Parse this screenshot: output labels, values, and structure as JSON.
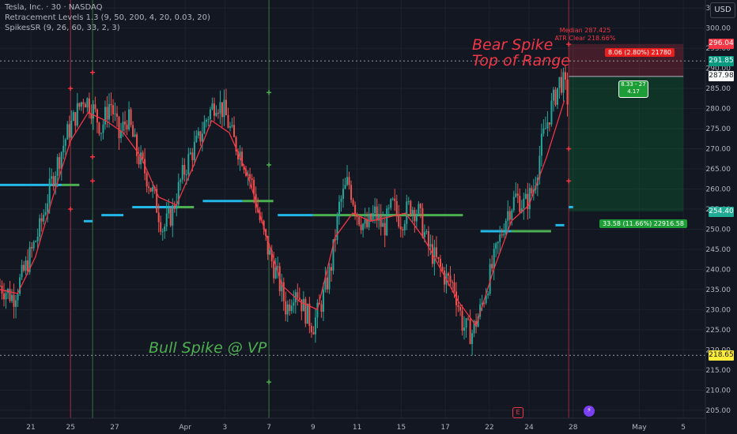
{
  "header": {
    "title": "Tesla, Inc. · 30 · NASDAQ",
    "indicator1": "Retracement Levels 1.3 (9, 50, 200, 4, 20, 0.03, 20)",
    "indicator2": "SpikesSR (9, 26, 60, 33, 2, 3)",
    "currency_button": "USD"
  },
  "annotations": {
    "bear_spike_line1": "Bear Spike",
    "bear_spike_line2": "Top of Range",
    "bull_spike": "Bull Spike @ VP",
    "median_label": "Median 287.425",
    "atr_label": "ATR Clear 218.66%",
    "stop_tag": "8.06 (2.80%) 21780",
    "target_tag": "33.58 (11.66%) 22916.58",
    "position_line1": "8.33 - 27",
    "position_line2": "4.17"
  },
  "price_tags": [
    {
      "text": "296.04",
      "value": 296.04,
      "bg": "#f23645",
      "fg": "#ffffff"
    },
    {
      "text": "291.85",
      "value": 291.85,
      "bg": "#089981",
      "fg": "#ffffff"
    },
    {
      "text": "287.98",
      "value": 287.98,
      "bg": "#ffffff",
      "fg": "#131722"
    },
    {
      "text": "254.40",
      "value": 254.4,
      "bg": "#22ab94",
      "fg": "#ffffff"
    },
    {
      "text": "218.65",
      "value": 218.65,
      "bg": "#ffeb3b",
      "fg": "#131722"
    }
  ],
  "events": {
    "earnings": "E",
    "ai": "⚡"
  },
  "colors": {
    "background": "#131722",
    "grid": "#1e222d",
    "up_candle": "#26a69a",
    "down_candle": "#ef5350",
    "ma_line": "#f23645",
    "vp_cyan": "#22b7e6",
    "vp_green": "#4caf50",
    "bear": "#f23645",
    "bull": "#4caf50"
  },
  "chart_data": {
    "type": "candlestick",
    "symbol": "Tesla, Inc. · 30 · NASDAQ",
    "ylim": [
      203,
      307
    ],
    "ticks_y": [
      205,
      210,
      215,
      220,
      225,
      230,
      235,
      240,
      245,
      250,
      255,
      260,
      265,
      270,
      275,
      280,
      285,
      290,
      295,
      300,
      305
    ],
    "x_labels": [
      "21",
      "25",
      "27",
      "Apr",
      "3",
      "7",
      "9",
      "11",
      "15",
      "17",
      "22",
      "24",
      "28",
      "May",
      "5"
    ],
    "price_path": [
      {
        "t": 0,
        "p": 236
      },
      {
        "t": 3,
        "p": 233
      },
      {
        "t": 6,
        "p": 241
      },
      {
        "t": 9,
        "p": 250
      },
      {
        "t": 12,
        "p": 263
      },
      {
        "t": 15,
        "p": 273
      },
      {
        "t": 17,
        "p": 278
      },
      {
        "t": 19,
        "p": 283
      },
      {
        "t": 21,
        "p": 280
      },
      {
        "t": 23,
        "p": 275
      },
      {
        "t": 25,
        "p": 282
      },
      {
        "t": 27,
        "p": 273
      },
      {
        "t": 29,
        "p": 278
      },
      {
        "t": 31,
        "p": 269
      },
      {
        "t": 33,
        "p": 264
      },
      {
        "t": 35,
        "p": 258
      },
      {
        "t": 37,
        "p": 250
      },
      {
        "t": 39,
        "p": 254
      },
      {
        "t": 41,
        "p": 262
      },
      {
        "t": 43,
        "p": 268
      },
      {
        "t": 45,
        "p": 272
      },
      {
        "t": 47,
        "p": 278
      },
      {
        "t": 49,
        "p": 282
      },
      {
        "t": 51,
        "p": 279
      },
      {
        "t": 53,
        "p": 272
      },
      {
        "t": 55,
        "p": 268
      },
      {
        "t": 57,
        "p": 262
      },
      {
        "t": 59,
        "p": 252
      },
      {
        "t": 61,
        "p": 244
      },
      {
        "t": 63,
        "p": 238
      },
      {
        "t": 65,
        "p": 230
      },
      {
        "t": 67,
        "p": 236
      },
      {
        "t": 69,
        "p": 230
      },
      {
        "t": 71,
        "p": 226
      },
      {
        "t": 73,
        "p": 232
      },
      {
        "t": 75,
        "p": 240
      },
      {
        "t": 77,
        "p": 256
      },
      {
        "t": 79,
        "p": 262
      },
      {
        "t": 81,
        "p": 254
      },
      {
        "t": 83,
        "p": 250
      },
      {
        "t": 85,
        "p": 254
      },
      {
        "t": 87,
        "p": 250
      },
      {
        "t": 89,
        "p": 256
      },
      {
        "t": 91,
        "p": 252
      },
      {
        "t": 93,
        "p": 256
      },
      {
        "t": 95,
        "p": 254
      },
      {
        "t": 97,
        "p": 246
      },
      {
        "t": 99,
        "p": 242
      },
      {
        "t": 101,
        "p": 238
      },
      {
        "t": 103,
        "p": 236
      },
      {
        "t": 105,
        "p": 226
      },
      {
        "t": 107,
        "p": 224
      },
      {
        "t": 109,
        "p": 230
      },
      {
        "t": 111,
        "p": 238
      },
      {
        "t": 113,
        "p": 246
      },
      {
        "t": 115,
        "p": 254
      },
      {
        "t": 117,
        "p": 258
      },
      {
        "t": 119,
        "p": 256
      },
      {
        "t": 121,
        "p": 260
      },
      {
        "t": 123,
        "p": 272
      },
      {
        "t": 125,
        "p": 280
      },
      {
        "t": 127,
        "p": 287
      },
      {
        "t": 128,
        "p": 286
      },
      {
        "t": 129,
        "p": 281
      }
    ],
    "ma_path": [
      {
        "t": 0,
        "p": 235
      },
      {
        "t": 4,
        "p": 234
      },
      {
        "t": 8,
        "p": 243
      },
      {
        "t": 12,
        "p": 258
      },
      {
        "t": 16,
        "p": 272
      },
      {
        "t": 20,
        "p": 279
      },
      {
        "t": 24,
        "p": 277
      },
      {
        "t": 28,
        "p": 274
      },
      {
        "t": 32,
        "p": 268
      },
      {
        "t": 36,
        "p": 258
      },
      {
        "t": 40,
        "p": 256
      },
      {
        "t": 44,
        "p": 266
      },
      {
        "t": 48,
        "p": 277
      },
      {
        "t": 52,
        "p": 274
      },
      {
        "t": 56,
        "p": 264
      },
      {
        "t": 60,
        "p": 250
      },
      {
        "t": 64,
        "p": 236
      },
      {
        "t": 68,
        "p": 232
      },
      {
        "t": 72,
        "p": 230
      },
      {
        "t": 76,
        "p": 248
      },
      {
        "t": 80,
        "p": 254
      },
      {
        "t": 84,
        "p": 252
      },
      {
        "t": 88,
        "p": 253
      },
      {
        "t": 92,
        "p": 254
      },
      {
        "t": 96,
        "p": 248
      },
      {
        "t": 100,
        "p": 240
      },
      {
        "t": 104,
        "p": 232
      },
      {
        "t": 108,
        "p": 226
      },
      {
        "t": 112,
        "p": 240
      },
      {
        "t": 116,
        "p": 252
      },
      {
        "t": 120,
        "p": 256
      },
      {
        "t": 124,
        "p": 268
      },
      {
        "t": 128,
        "p": 282
      }
    ],
    "vp_segments": [
      {
        "t0": 0,
        "t1": 14,
        "p": 261,
        "color": "cyan"
      },
      {
        "t0": 14,
        "t1": 18,
        "p": 261,
        "color": "green"
      },
      {
        "t0": 19,
        "t1": 21,
        "p": 252,
        "color": "cyan"
      },
      {
        "t0": 23,
        "t1": 28,
        "p": 253.5,
        "color": "cyan"
      },
      {
        "t0": 30,
        "t1": 40,
        "p": 255.5,
        "color": "cyan"
      },
      {
        "t0": 40,
        "t1": 44,
        "p": 255.5,
        "color": "green"
      },
      {
        "t0": 46,
        "t1": 55,
        "p": 257,
        "color": "cyan"
      },
      {
        "t0": 55,
        "t1": 62,
        "p": 257,
        "color": "green"
      },
      {
        "t0": 63,
        "t1": 71,
        "p": 253.5,
        "color": "cyan"
      },
      {
        "t0": 71,
        "t1": 105,
        "p": 253.5,
        "color": "green"
      },
      {
        "t0": 109,
        "t1": 116,
        "p": 249.5,
        "color": "cyan"
      },
      {
        "t0": 116,
        "t1": 125,
        "p": 249.5,
        "color": "green"
      },
      {
        "t0": 126,
        "t1": 128,
        "p": 251,
        "color": "cyan"
      },
      {
        "t0": 129,
        "t1": 130,
        "p": 255.5,
        "color": "cyan"
      }
    ],
    "horizontal_levels": [
      {
        "p": 291.85,
        "style": "dotted"
      },
      {
        "p": 218.65,
        "style": "dotted"
      }
    ],
    "vertical_markers": [
      {
        "t": 16,
        "color": "red"
      },
      {
        "t": 21,
        "color": "green"
      },
      {
        "t": 61,
        "color": "green"
      },
      {
        "t": 129,
        "color": "red"
      }
    ],
    "spike_marks": [
      {
        "t": 16,
        "p": 255,
        "color": "red"
      },
      {
        "t": 16,
        "p": 285,
        "color": "red"
      },
      {
        "t": 21,
        "p": 289,
        "color": "red"
      },
      {
        "t": 21,
        "p": 268,
        "color": "red"
      },
      {
        "t": 21,
        "p": 262,
        "color": "red"
      },
      {
        "t": 61,
        "p": 284,
        "color": "green"
      },
      {
        "t": 61,
        "p": 266,
        "color": "green"
      },
      {
        "t": 61,
        "p": 212,
        "color": "green"
      },
      {
        "t": 129,
        "p": 296,
        "color": "red"
      },
      {
        "t": 129,
        "p": 270,
        "color": "red"
      },
      {
        "t": 129,
        "p": 262,
        "color": "red"
      }
    ],
    "position": {
      "t0": 129,
      "t1": 155,
      "entry": 287.98,
      "stop": 296.04,
      "target": 254.4
    }
  }
}
